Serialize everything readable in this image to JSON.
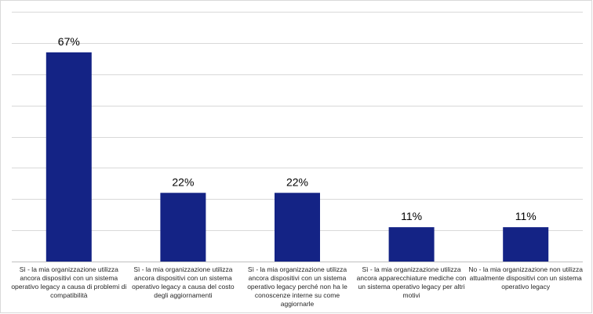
{
  "chart_data": {
    "type": "bar",
    "categories": [
      "Sì - la mia organizzazione utilizza ancora dispositivi con un sistema operativo legacy a causa di problemi di compatibilità",
      "Sì - la mia organizzazione utilizza ancora dispositivi con un sistema operativo legacy a causa del costo degli aggiornamenti",
      "Sì - la mia organizzazione utilizza ancora dispositivi con un sistema operativo legacy perché non ha le conoscenze interne su come aggiornarle",
      "Sì - la mia organizzazione utilizza ancora apparecchiature mediche con un sistema operativo legacy per altri motivi",
      "No - la mia organizzazione non utilizza attualmente dispositivi con un sistema operativo legacy"
    ],
    "values": [
      67,
      22,
      22,
      11,
      11
    ],
    "data_labels": [
      "67%",
      "22%",
      "22%",
      "11%",
      "11%"
    ],
    "ylim": [
      0,
      80
    ],
    "grid": true,
    "legend": "none",
    "bar_color": "#142385"
  }
}
